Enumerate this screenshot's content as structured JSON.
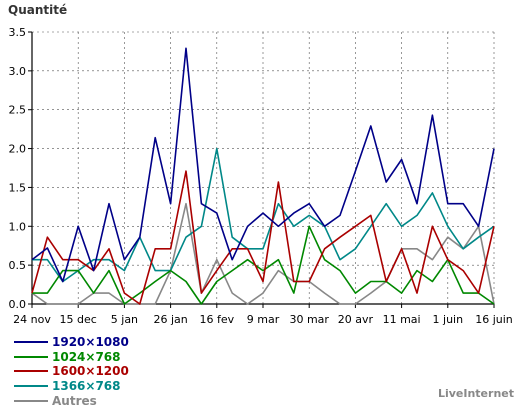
{
  "chart_data": {
    "type": "line",
    "ylabel": "Quantité",
    "ylim": [
      0,
      3.5
    ],
    "yticks": [
      "0.0",
      "0.5",
      "1.0",
      "1.5",
      "2.0",
      "2.5",
      "3.0",
      "3.5"
    ],
    "xticks": [
      "24 nov",
      "15 dec",
      "5 jan",
      "26 jan",
      "16 fev",
      "9 mar",
      "30 mar",
      "20 avr",
      "11 mai",
      "1 juin",
      "16 juin"
    ],
    "grid": true,
    "legend_position": "bottom-left",
    "series": [
      {
        "name": "1920×1080",
        "color": "#000088",
        "values": [
          0.57,
          0.72,
          0.29,
          1.0,
          0.43,
          1.29,
          0.57,
          0.86,
          2.14,
          1.29,
          3.29,
          1.29,
          1.17,
          0.57,
          1.0,
          1.17,
          1.0,
          1.17,
          1.29,
          1.0,
          1.14,
          1.71,
          2.29,
          1.57,
          1.86,
          1.29,
          2.43,
          1.29,
          1.29,
          1.0,
          2.0
        ]
      },
      {
        "name": "1024×768",
        "color": "#008800",
        "values": [
          0.14,
          0.14,
          0.43,
          0.43,
          0.14,
          0.43,
          0.0,
          0.14,
          0.29,
          0.43,
          0.29,
          0.0,
          0.29,
          0.43,
          0.57,
          0.43,
          0.57,
          0.14,
          1.0,
          0.57,
          0.43,
          0.14,
          0.29,
          0.29,
          0.14,
          0.43,
          0.29,
          0.57,
          0.14,
          0.14,
          0.0
        ]
      },
      {
        "name": "1600×1200",
        "color": "#AA0000",
        "values": [
          0.14,
          0.86,
          0.57,
          0.57,
          0.43,
          0.71,
          0.14,
          0.0,
          0.71,
          0.71,
          1.71,
          0.14,
          0.43,
          0.71,
          0.71,
          0.29,
          1.57,
          0.29,
          0.29,
          0.71,
          0.86,
          1.0,
          1.14,
          0.29,
          0.71,
          0.14,
          1.0,
          0.57,
          0.43,
          0.14,
          1.0
        ]
      },
      {
        "name": "1366×768",
        "color": "#008888",
        "values": [
          0.57,
          0.57,
          0.29,
          0.43,
          0.57,
          0.57,
          0.43,
          0.86,
          0.43,
          0.43,
          0.86,
          1.0,
          2.0,
          0.86,
          0.71,
          0.71,
          1.29,
          1.0,
          1.14,
          1.0,
          0.57,
          0.71,
          1.0,
          1.29,
          1.0,
          1.14,
          1.43,
          1.0,
          0.71,
          0.86,
          1.0
        ]
      },
      {
        "name": "Autres",
        "color": "#888888",
        "values": [
          0.14,
          0.0,
          0.0,
          0.0,
          0.14,
          0.14,
          0.0,
          0.0,
          0.0,
          0.43,
          1.29,
          0.14,
          0.57,
          0.14,
          0.0,
          0.14,
          0.43,
          0.29,
          0.29,
          0.14,
          0.0,
          0.0,
          0.14,
          0.29,
          0.71,
          0.71,
          0.57,
          0.86,
          0.71,
          1.0,
          0.0
        ]
      }
    ]
  },
  "brand": "LiveInternet"
}
